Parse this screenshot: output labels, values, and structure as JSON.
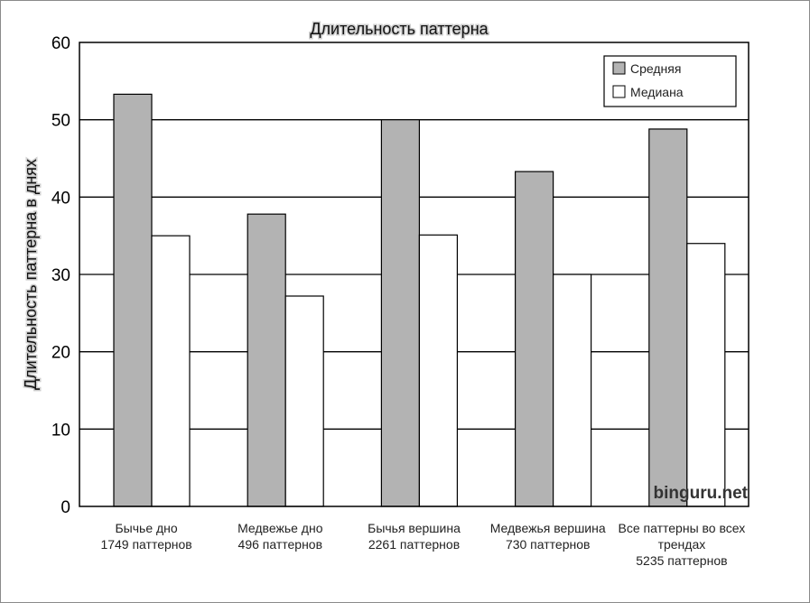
{
  "chart_data": {
    "type": "bar",
    "title": "Длительность паттерна",
    "ylabel": "Длительность паттерна в днях",
    "xlabel": "",
    "ylim": [
      0,
      60
    ],
    "yticks": [
      0,
      10,
      20,
      30,
      40,
      50,
      60
    ],
    "grid": true,
    "legend_position": "top-right",
    "categories": [
      [
        "Бычье дно",
        "1749 паттернов"
      ],
      [
        "Медвежье дно",
        "496 паттернов"
      ],
      [
        "Бычья вершина",
        "2261 паттернов"
      ],
      [
        "Медвежья вершина",
        "730 паттернов"
      ],
      [
        "Все паттерны во всех",
        "трендах",
        "5235 паттернов"
      ]
    ],
    "series": [
      {
        "name": "Средняя",
        "color": "#b3b3b3",
        "values": [
          53.3,
          37.8,
          50.0,
          43.3,
          48.8
        ]
      },
      {
        "name": "Медиана",
        "color": "#ffffff",
        "values": [
          35.0,
          27.2,
          35.1,
          30.0,
          34.0
        ]
      }
    ]
  },
  "watermark": "binguru.net"
}
